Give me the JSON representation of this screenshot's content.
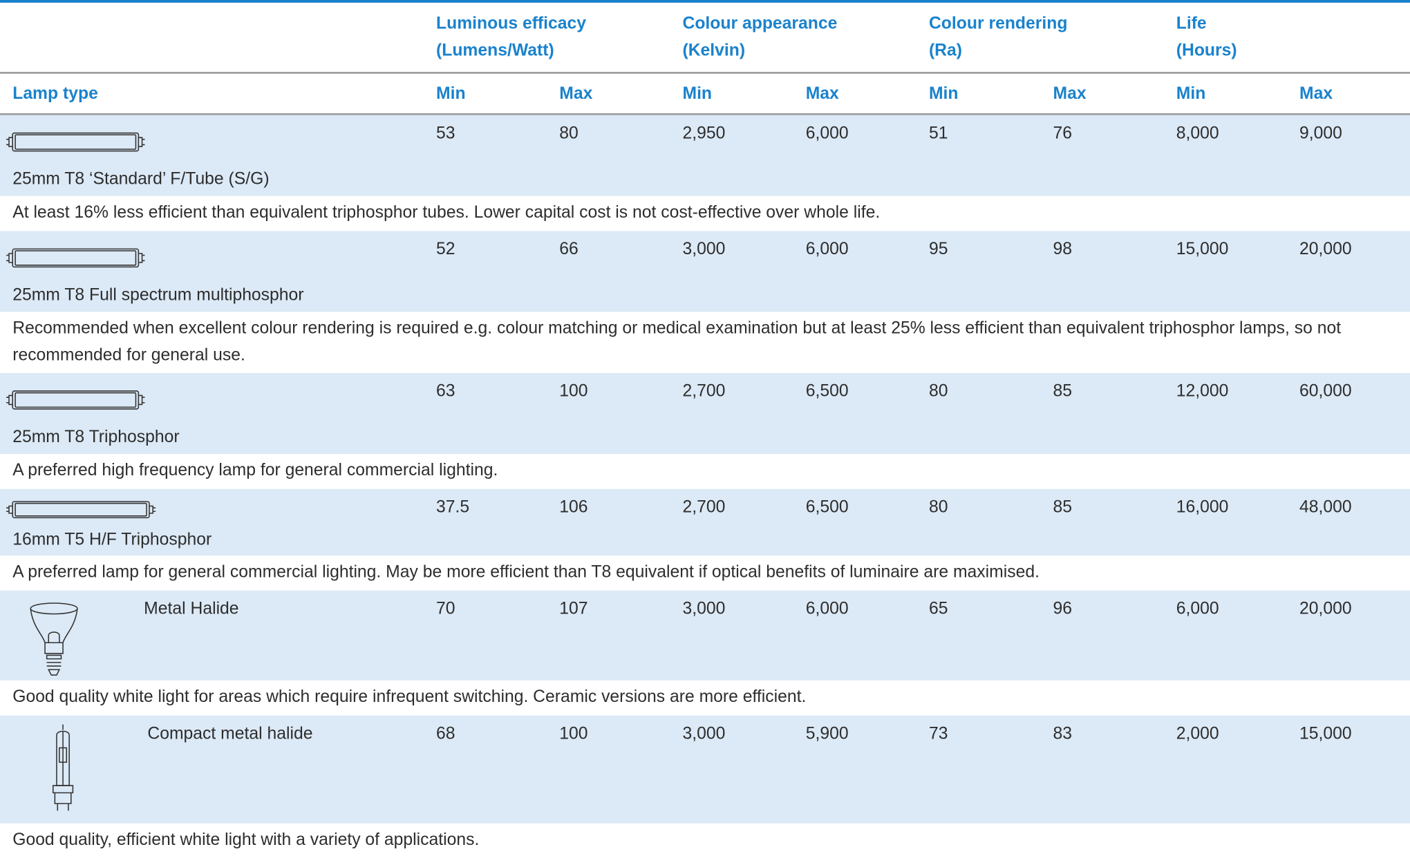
{
  "header": {
    "groups": [
      {
        "title": "Luminous efficacy",
        "unit": "(Lumens/Watt)"
      },
      {
        "title": "Colour appearance",
        "unit": "(Kelvin)"
      },
      {
        "title": "Colour rendering",
        "unit": "(Ra)"
      },
      {
        "title": "Life",
        "unit": "(Hours)"
      }
    ],
    "lamp_type": "Lamp type",
    "columns": [
      "Min",
      "Max",
      "Min",
      "Max",
      "Min",
      "Max",
      "Min",
      "Max"
    ]
  },
  "rows": [
    {
      "name": "25mm T8 ‘Standard’ F/Tube (S/G)",
      "values": [
        "53",
        "80",
        "2,950",
        "6,000",
        "51",
        "76",
        "8,000",
        "9,000"
      ],
      "note": "At least 16% less efficient than equivalent triphosphor tubes. Lower capital cost is not cost-effective over whole life."
    },
    {
      "name": "25mm T8 Full spectrum multiphosphor",
      "values": [
        "52",
        "66",
        "3,000",
        "6,000",
        "95",
        "98",
        "15,000",
        "20,000"
      ],
      "note": "Recommended when excellent colour rendering is required e.g. colour matching or medical examination but at least 25% less efficient than equivalent triphosphor lamps, so not recommended for general use."
    },
    {
      "name": "25mm T8 Triphosphor",
      "values": [
        "63",
        "100",
        "2,700",
        "6,500",
        "80",
        "85",
        "12,000",
        "60,000"
      ],
      "note": "A preferred high frequency lamp for general commercial lighting."
    },
    {
      "name": "16mm T5 H/F Triphosphor",
      "values": [
        "37.5",
        "106",
        "2,700",
        "6,500",
        "80",
        "85",
        "16,000",
        "48,000"
      ],
      "note": "A preferred lamp for general commercial lighting. May be more efficient than T8 equivalent if optical benefits of luminaire are maximised."
    },
    {
      "name": "Metal Halide",
      "values": [
        "70",
        "107",
        "3,000",
        "6,000",
        "65",
        "96",
        "6,000",
        "20,000"
      ],
      "note": "Good quality white light for areas which require infrequent switching. Ceramic versions are more efficient."
    },
    {
      "name": "Compact metal halide",
      "values": [
        "68",
        "100",
        "3,000",
        "5,900",
        "73",
        "83",
        "2,000",
        "15,000"
      ],
      "note": "Good quality, efficient white light with a variety of applications."
    }
  ]
}
